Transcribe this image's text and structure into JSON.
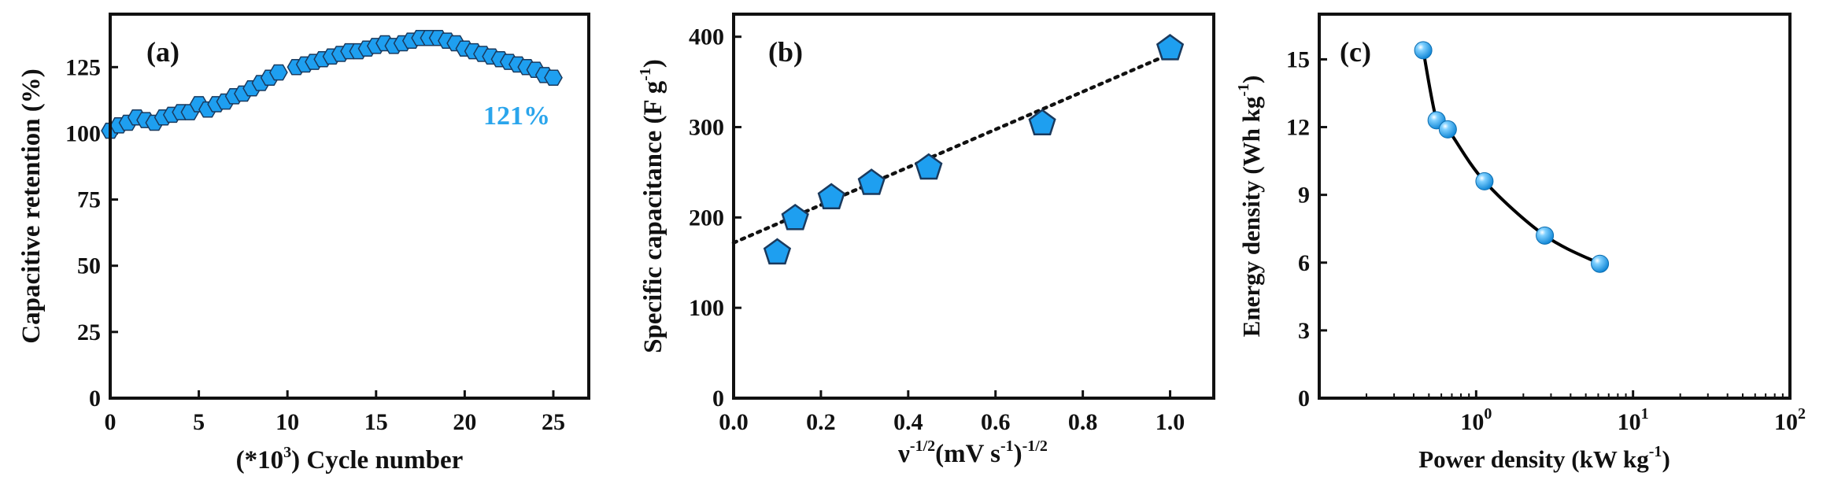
{
  "colors": {
    "marker_fill": "#1e9ff0",
    "marker_stroke": "#1a3a5e",
    "annotation": "#2aa5ec",
    "axis": "#111111",
    "curve": "#000000"
  },
  "chart_data": [
    {
      "type": "scatter",
      "panel_label": "(a)",
      "title": "",
      "xlabel": "(*10",
      "xlabel_sup": "3",
      "xlabel_tail": ") Cycle number",
      "ylabel": "Capacitive retention (%)",
      "xlim": [
        0,
        27
      ],
      "ylim": [
        0,
        145
      ],
      "xticks": [
        0,
        5,
        10,
        15,
        20,
        25
      ],
      "yticks": [
        0,
        25,
        50,
        75,
        100,
        125
      ],
      "marker": "hexagon",
      "annotation": "121%",
      "x": [
        0,
        0.5,
        1,
        1.5,
        2,
        2.5,
        3,
        3.5,
        4,
        4.5,
        5,
        5.5,
        6,
        6.5,
        7,
        7.5,
        8,
        8.5,
        9,
        9.5,
        10.5,
        11,
        11.5,
        12,
        12.5,
        13,
        13.5,
        14,
        14.5,
        15,
        15.5,
        16,
        16.5,
        17,
        17.5,
        18,
        18.5,
        19,
        19.5,
        20,
        20.5,
        21,
        21.5,
        22,
        22.5,
        23,
        23.5,
        24,
        24.5,
        25
      ],
      "y": [
        101,
        103,
        104,
        106,
        105,
        104,
        106,
        107,
        108,
        108,
        111,
        109,
        111,
        112,
        114,
        115,
        117,
        119,
        121,
        123,
        125,
        126,
        127,
        128,
        129,
        130,
        131,
        131,
        132,
        133,
        134,
        133,
        134,
        135,
        136,
        136,
        136,
        135,
        134,
        132,
        131,
        130,
        129,
        128,
        127,
        126,
        125,
        124,
        122,
        121
      ]
    },
    {
      "type": "scatter",
      "panel_label": "(b)",
      "title": "",
      "xlabel": "ν",
      "xlabel_sup": "-1/2",
      "xlabel_mid": "(mV s",
      "xlabel_sup2": "-1",
      "xlabel_tail": ")",
      "xlabel_sup3": "-1/2",
      "ylabel": "Specific capacitance (F g",
      "ylabel_sup": "-1",
      "ylabel_tail": ")",
      "xlim": [
        0,
        1.1
      ],
      "ylim": [
        0,
        425
      ],
      "xticks": [
        0.0,
        0.2,
        0.4,
        0.6,
        0.8,
        1.0
      ],
      "xtick_labels": [
        "0.0",
        "0.2",
        "0.4",
        "0.6",
        "0.8",
        "1.0"
      ],
      "yticks": [
        0,
        100,
        200,
        300,
        400
      ],
      "marker": "pentagon",
      "x": [
        0.1,
        0.141,
        0.224,
        0.316,
        0.447,
        0.707,
        1.0
      ],
      "y": [
        161,
        199,
        222,
        238,
        255,
        304,
        387
      ],
      "fit_line": {
        "x": [
          0,
          1.0
        ],
        "y": [
          172,
          381
        ],
        "style": "dotted"
      }
    },
    {
      "type": "line",
      "panel_label": "(c)",
      "title": "",
      "xlabel": "Power density (kW kg",
      "xlabel_sup": "-1",
      "xlabel_tail": ")",
      "ylabel": "Energy density (Wh kg",
      "ylabel_sup": "-1",
      "ylabel_tail": ")",
      "xscale": "log",
      "xlim": [
        0.1,
        100
      ],
      "ylim": [
        0,
        17
      ],
      "xticks": [
        1,
        10,
        100
      ],
      "xtick_base": [
        "10",
        "10",
        "10"
      ],
      "xtick_exp": [
        "0",
        "1",
        "2"
      ],
      "yticks": [
        0,
        3,
        6,
        9,
        12,
        15
      ],
      "marker": "sphere",
      "x": [
        0.46,
        0.56,
        0.66,
        1.13,
        2.74,
        6.15
      ],
      "y": [
        15.4,
        12.3,
        11.9,
        9.6,
        7.2,
        5.95
      ]
    }
  ]
}
